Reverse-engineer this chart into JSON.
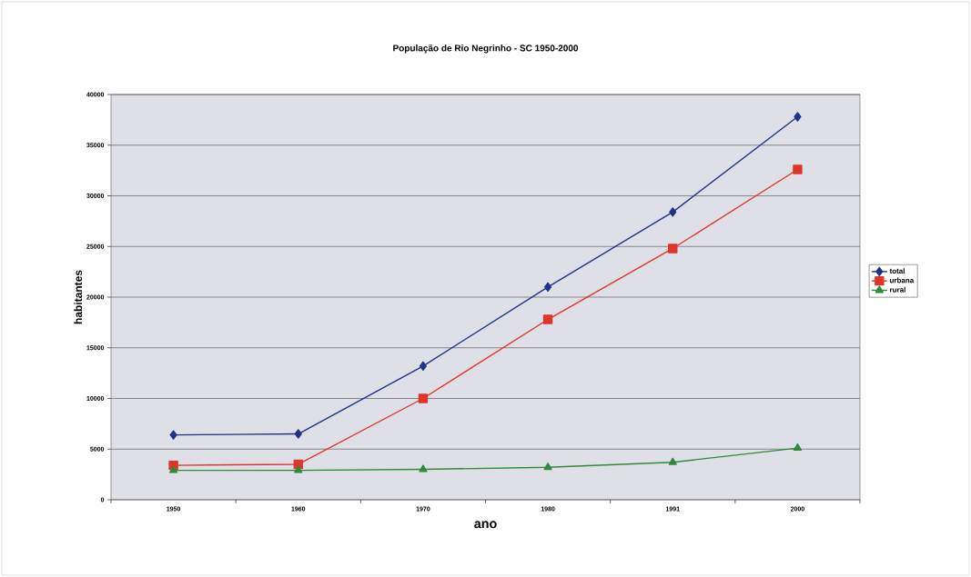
{
  "chart_data": {
    "type": "line",
    "title": "População de Rio Negrinho - SC        1950-2000",
    "xlabel": "ano",
    "ylabel": "habitantes",
    "categories": [
      "1950",
      "1960",
      "1970",
      "1980",
      "1991",
      "2000"
    ],
    "series": [
      {
        "name": "total",
        "color": "#1f3388",
        "marker": "diamond",
        "values": [
          6400,
          6500,
          13200,
          21000,
          28400,
          37800
        ]
      },
      {
        "name": "urbana",
        "color": "#e0352b",
        "marker": "square",
        "values": [
          3400,
          3500,
          10000,
          17800,
          24800,
          32600
        ]
      },
      {
        "name": "rural",
        "color": "#2e8b3a",
        "marker": "triangle",
        "values": [
          2900,
          2900,
          3000,
          3200,
          3700,
          5100
        ]
      }
    ],
    "ylim": [
      0,
      40000
    ],
    "yticks": [
      0,
      5000,
      10000,
      15000,
      20000,
      25000,
      30000,
      35000,
      40000
    ],
    "grid": "y",
    "legend": "right",
    "line_style": "solid"
  }
}
